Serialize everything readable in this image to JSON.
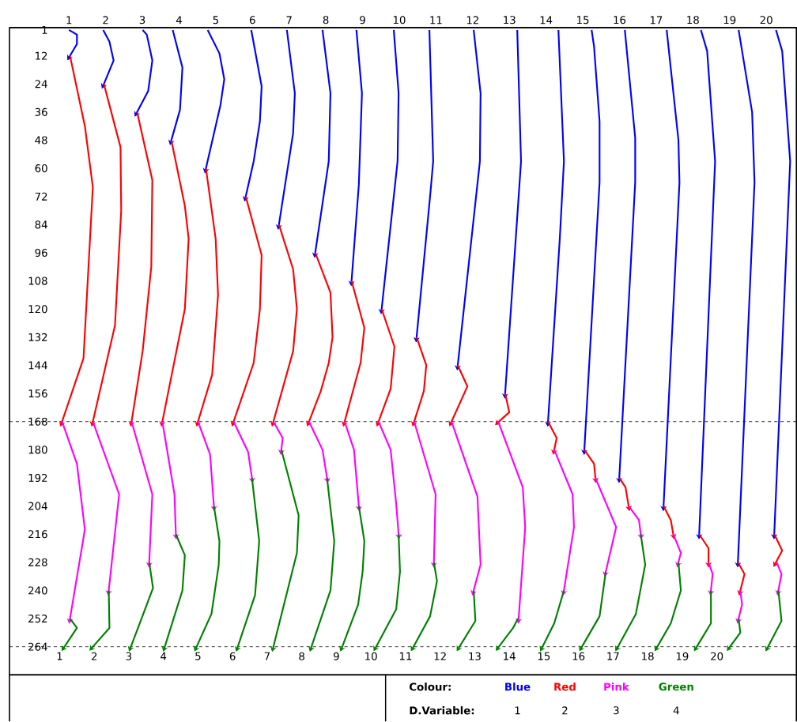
{
  "chart_data": {
    "type": "line",
    "xlim": [
      -0.45,
      22.3
    ],
    "xticks": [
      1,
      2,
      3,
      4,
      5,
      6,
      7,
      8,
      9,
      10,
      11,
      12,
      13,
      14,
      15,
      16,
      17,
      18,
      19,
      20
    ],
    "x2lim": [
      -0.62,
      20.82
    ],
    "x2ticks": [
      1,
      2,
      3,
      4,
      5,
      6,
      7,
      8,
      9,
      10,
      11,
      12,
      13,
      14,
      15,
      16,
      17,
      18,
      19,
      20
    ],
    "ylim": [
      276,
      0
    ],
    "yticks": [
      1,
      12,
      24,
      36,
      48,
      60,
      72,
      84,
      96,
      108,
      120,
      132,
      144,
      156,
      168,
      180,
      192,
      204,
      216,
      228,
      240,
      252,
      264
    ],
    "ref_lines": [
      {
        "axis": "y",
        "value": 168,
        "color": "#000000",
        "line_style": "dashed"
      },
      {
        "axis": "y",
        "value": 264,
        "color": "#000000",
        "line_style": "dashed"
      }
    ],
    "legend": "bottom right",
    "annotations": [
      "Colour:",
      "D.Variable:",
      "1",
      "2",
      "3",
      "4"
    ],
    "series": [
      {
        "name": "Blue",
        "color": "#0000ff",
        "x": [
          1.27,
          1.5,
          1.5,
          1.3
        ],
        "values": [
          1,
          3,
          7,
          12
        ]
      },
      {
        "color": "#0000ff",
        "x": [
          2.26,
          2.44,
          2.56,
          2.28
        ],
        "values": [
          1,
          6,
          14,
          24
        ]
      },
      {
        "color": "#0000ff",
        "x": [
          3.4,
          3.52,
          3.68,
          3.56,
          3.24
        ],
        "values": [
          1,
          3,
          14,
          27,
          36
        ]
      },
      {
        "color": "#0000ff",
        "x": [
          4.27,
          4.55,
          4.48,
          4.23
        ],
        "values": [
          1,
          17,
          35,
          48
        ]
      },
      {
        "color": "#0000ff",
        "x": [
          5.28,
          5.62,
          5.76,
          5.65,
          5.23
        ],
        "values": [
          1,
          11,
          22,
          33,
          60
        ]
      },
      {
        "color": "#0000ff",
        "x": [
          6.54,
          6.84,
          6.79,
          6.61,
          6.38
        ],
        "values": [
          1,
          25,
          40,
          57,
          72
        ]
      },
      {
        "color": "#0000ff",
        "x": [
          7.57,
          7.8,
          7.75,
          7.34
        ],
        "values": [
          1,
          28,
          45,
          84
        ]
      },
      {
        "color": "#0000ff",
        "x": [
          8.6,
          8.83,
          8.78,
          8.39
        ],
        "values": [
          1,
          28,
          57,
          96
        ]
      },
      {
        "color": "#0000ff",
        "x": [
          9.58,
          9.74,
          9.65,
          9.44
        ],
        "values": [
          1,
          28,
          67,
          108
        ]
      },
      {
        "color": "#0000ff",
        "x": [
          10.66,
          10.8,
          10.77,
          10.31
        ],
        "values": [
          1,
          28,
          57,
          120
        ]
      },
      {
        "color": "#0000ff",
        "x": [
          11.69,
          11.8,
          11.71,
          11.32
        ],
        "values": [
          1,
          57,
          72,
          132
        ]
      },
      {
        "color": "#0000ff",
        "x": [
          12.97,
          13.17,
          13.15,
          12.51
        ],
        "values": [
          1,
          28,
          57,
          144
        ]
      },
      {
        "color": "#0000ff",
        "x": [
          14.23,
          14.34,
          13.88
        ],
        "values": [
          1,
          57,
          156
        ]
      },
      {
        "color": "#0000ff",
        "x": [
          15.42,
          15.58,
          15.46,
          15.12
        ],
        "values": [
          1,
          57,
          90,
          168
        ]
      },
      {
        "color": "#0000ff",
        "x": [
          16.38,
          16.45,
          16.61,
          16.61,
          16.17
        ],
        "values": [
          1,
          8,
          40,
          66,
          180
        ]
      },
      {
        "color": "#0000ff",
        "x": [
          17.34,
          17.64,
          17.64,
          17.18
        ],
        "values": [
          1,
          47,
          66,
          192
        ]
      },
      {
        "color": "#0000ff",
        "x": [
          18.55,
          18.89,
          18.92,
          18.46
        ],
        "values": [
          1,
          48,
          66,
          204
        ]
      },
      {
        "color": "#0000ff",
        "x": [
          19.54,
          19.72,
          19.95,
          19.49
        ],
        "values": [
          1,
          10,
          57,
          216
        ]
      },
      {
        "color": "#0000ff",
        "x": [
          20.63,
          21.02,
          21.09,
          20.61
        ],
        "values": [
          1,
          36,
          66,
          228
        ]
      },
      {
        "color": "#0000ff",
        "x": [
          21.71,
          21.89,
          22.12,
          21.66
        ],
        "values": [
          1,
          10,
          57,
          216
        ]
      },
      {
        "name": "Red",
        "color": "#ff0000",
        "x": [
          1.3,
          1.73,
          1.96,
          1.69,
          1.07
        ],
        "values": [
          12,
          42,
          68,
          141,
          168
        ]
      },
      {
        "color": "#ff0000",
        "x": [
          2.28,
          2.76,
          2.78,
          2.6,
          1.96
        ],
        "values": [
          24,
          51,
          78,
          127,
          168
        ]
      },
      {
        "color": "#ff0000",
        "x": [
          3.24,
          3.68,
          3.65,
          3.4,
          3.08
        ],
        "values": [
          36,
          65,
          102,
          138,
          168
        ]
      },
      {
        "color": "#ff0000",
        "x": [
          4.23,
          4.62,
          4.73,
          4.62,
          3.97
        ],
        "values": [
          48,
          76,
          90,
          120,
          168
        ]
      },
      {
        "color": "#ff0000",
        "x": [
          5.23,
          5.51,
          5.58,
          5.41,
          5.0
        ],
        "values": [
          60,
          90,
          114,
          148,
          168
        ]
      },
      {
        "color": "#ff0000",
        "x": [
          6.38,
          6.84,
          6.79,
          6.61,
          6.03
        ],
        "values": [
          72,
          97,
          120,
          143,
          168
        ]
      },
      {
        "color": "#ff0000",
        "x": [
          7.34,
          7.75,
          7.86,
          7.75,
          7.18
        ],
        "values": [
          84,
          103,
          120,
          138,
          168
        ]
      },
      {
        "color": "#ff0000",
        "x": [
          8.39,
          8.83,
          8.89,
          8.78,
          8.55,
          8.21
        ],
        "values": [
          96,
          113,
          132,
          143,
          155,
          168
        ]
      },
      {
        "color": "#ff0000",
        "x": [
          9.44,
          9.81,
          9.7,
          9.24
        ],
        "values": [
          108,
          128,
          143,
          168
        ]
      },
      {
        "color": "#ff0000",
        "x": [
          10.31,
          10.68,
          10.57,
          10.22
        ],
        "values": [
          120,
          136,
          154,
          168
        ]
      },
      {
        "color": "#ff0000",
        "x": [
          11.32,
          11.6,
          11.53,
          11.25
        ],
        "values": [
          132,
          144,
          155,
          168
        ]
      },
      {
        "color": "#ff0000",
        "x": [
          12.51,
          12.79,
          12.33
        ],
        "values": [
          144,
          153,
          168
        ]
      },
      {
        "color": "#ff0000",
        "x": [
          13.88,
          14.0,
          13.7
        ],
        "values": [
          156,
          164,
          168
        ]
      },
      {
        "color": "#ff0000",
        "x": [
          15.12,
          15.37,
          15.3
        ],
        "values": [
          168,
          175,
          180
        ]
      },
      {
        "color": "#ff0000",
        "x": [
          16.17,
          16.45,
          16.49
        ],
        "values": [
          180,
          186,
          192
        ]
      },
      {
        "color": "#ff0000",
        "x": [
          17.18,
          17.36,
          17.45
        ],
        "values": [
          192,
          196,
          204
        ]
      },
      {
        "color": "#ff0000",
        "x": [
          18.46,
          18.67,
          18.74
        ],
        "values": [
          204,
          210,
          216
        ]
      },
      {
        "color": "#ff0000",
        "x": [
          19.49,
          19.76,
          19.76
        ],
        "values": [
          216,
          222,
          228
        ]
      },
      {
        "color": "#ff0000",
        "x": [
          20.61,
          20.8,
          20.68
        ],
        "values": [
          228,
          233,
          240
        ]
      },
      {
        "color": "#ff0000",
        "x": [
          21.66,
          21.89,
          21.71
        ],
        "values": [
          216,
          223,
          228
        ]
      },
      {
        "name": "Pink",
        "color": "#ff00ff",
        "x": [
          1.07,
          1.5,
          1.73,
          1.3
        ],
        "values": [
          168,
          186,
          214,
          252
        ]
      },
      {
        "color": "#ff00ff",
        "x": [
          1.96,
          2.72,
          2.42
        ],
        "values": [
          168,
          199,
          240
        ]
      },
      {
        "color": "#ff00ff",
        "x": [
          3.08,
          3.68,
          3.59
        ],
        "values": [
          168,
          199,
          228
        ]
      },
      {
        "color": "#ff00ff",
        "x": [
          3.97,
          4.32,
          4.36
        ],
        "values": [
          168,
          199,
          216
        ]
      },
      {
        "color": "#ff00ff",
        "x": [
          5.0,
          5.35,
          5.46
        ],
        "values": [
          168,
          182,
          204
        ]
      },
      {
        "color": "#ff00ff",
        "x": [
          6.03,
          6.45,
          6.56
        ],
        "values": [
          168,
          181,
          192
        ]
      },
      {
        "color": "#ff00ff",
        "x": [
          7.18,
          7.45,
          7.41
        ],
        "values": [
          168,
          175,
          180
        ]
      },
      {
        "color": "#ff00ff",
        "x": [
          8.21,
          8.6,
          8.73
        ],
        "values": [
          168,
          180,
          192
        ]
      },
      {
        "color": "#ff00ff",
        "x": [
          9.24,
          9.51,
          9.65
        ],
        "values": [
          168,
          180,
          204
        ]
      },
      {
        "color": "#ff00ff",
        "x": [
          10.22,
          10.57,
          10.73,
          10.8
        ],
        "values": [
          168,
          180,
          203,
          216
        ]
      },
      {
        "color": "#ff00ff",
        "x": [
          11.25,
          11.87,
          11.82
        ],
        "values": [
          168,
          199,
          228
        ]
      },
      {
        "color": "#ff00ff",
        "x": [
          12.33,
          13.08,
          13.17,
          12.97
        ],
        "values": [
          168,
          200,
          229,
          240
        ]
      },
      {
        "color": "#ff00ff",
        "x": [
          13.68,
          14.39,
          14.46,
          14.27
        ],
        "values": [
          168,
          196,
          213,
          252
        ]
      },
      {
        "color": "#ff00ff",
        "x": [
          15.3,
          15.83,
          15.87,
          15.58
        ],
        "values": [
          180,
          199,
          213,
          240
        ]
      },
      {
        "color": "#ff00ff",
        "x": [
          16.49,
          17.09,
          16.79
        ],
        "values": [
          192,
          213,
          232
        ]
      },
      {
        "color": "#ff00ff",
        "x": [
          17.45,
          17.75,
          17.8
        ],
        "values": [
          204,
          210,
          216
        ]
      },
      {
        "color": "#ff00ff",
        "x": [
          18.74,
          18.96,
          18.89
        ],
        "values": [
          216,
          224,
          228
        ]
      },
      {
        "color": "#ff00ff",
        "x": [
          19.76,
          19.88,
          19.83
        ],
        "values": [
          228,
          233,
          240
        ]
      },
      {
        "color": "#ff00ff",
        "x": [
          20.68,
          20.73,
          20.63
        ],
        "values": [
          240,
          246,
          252
        ]
      },
      {
        "color": "#ff00ff",
        "x": [
          21.73,
          21.87,
          21.78
        ],
        "values": [
          228,
          233,
          240
        ]
      },
      {
        "name": "Green",
        "color": "#008000",
        "x": [
          1.3,
          1.5,
          1.14
        ],
        "values": [
          252,
          256,
          264
        ]
      },
      {
        "color": "#008000",
        "x": [
          2.42,
          2.44,
          1.96
        ],
        "values": [
          240,
          256,
          264
        ]
      },
      {
        "color": "#008000",
        "x": [
          3.59,
          3.7,
          3.06
        ],
        "values": [
          228,
          239,
          264
        ]
      },
      {
        "color": "#008000",
        "x": [
          4.36,
          4.62,
          4.55,
          4.04
        ],
        "values": [
          216,
          225,
          240,
          264
        ]
      },
      {
        "color": "#008000",
        "x": [
          5.46,
          5.62,
          5.6,
          5.39,
          4.96
        ],
        "values": [
          204,
          219,
          229,
          250,
          264
        ]
      },
      {
        "color": "#008000",
        "x": [
          6.56,
          6.77,
          6.65,
          6.15
        ],
        "values": [
          192,
          219,
          242,
          264
        ]
      },
      {
        "color": "#008000",
        "x": [
          7.41,
          7.91,
          7.86,
          7.18
        ],
        "values": [
          180,
          208,
          224,
          264
        ]
      },
      {
        "color": "#008000",
        "x": [
          8.73,
          8.94,
          8.83,
          8.28
        ],
        "values": [
          192,
          219,
          240,
          264
        ]
      },
      {
        "color": "#008000",
        "x": [
          9.65,
          9.81,
          9.76,
          9.63,
          9.17
        ],
        "values": [
          204,
          219,
          232,
          246,
          264
        ]
      },
      {
        "color": "#008000",
        "x": [
          10.8,
          10.84,
          10.73,
          10.15
        ],
        "values": [
          216,
          232,
          248,
          264
        ]
      },
      {
        "color": "#008000",
        "x": [
          11.82,
          11.91,
          11.71,
          11.23
        ],
        "values": [
          228,
          236,
          251,
          264
        ]
      },
      {
        "color": "#008000",
        "x": [
          12.97,
          13.02,
          12.56
        ],
        "values": [
          240,
          253,
          264
        ]
      },
      {
        "color": "#008000",
        "x": [
          14.25,
          14.11,
          13.7
        ],
        "values": [
          252,
          256,
          264
        ]
      },
      {
        "color": "#008000",
        "x": [
          15.58,
          15.3,
          14.96
        ],
        "values": [
          240,
          254,
          264
        ]
      },
      {
        "color": "#008000",
        "x": [
          16.79,
          16.61,
          16.1
        ],
        "values": [
          232,
          251,
          264
        ]
      },
      {
        "color": "#008000",
        "x": [
          17.8,
          17.93,
          17.66,
          17.14
        ],
        "values": [
          216,
          229,
          250,
          264
        ]
      },
      {
        "color": "#008000",
        "x": [
          18.89,
          18.96,
          18.67,
          18.28
        ],
        "values": [
          228,
          240,
          254,
          264
        ]
      },
      {
        "color": "#008000",
        "x": [
          19.83,
          19.83,
          19.42
        ],
        "values": [
          240,
          254,
          264
        ]
      },
      {
        "color": "#008000",
        "x": [
          20.63,
          20.68,
          20.38
        ],
        "values": [
          252,
          258,
          264
        ]
      },
      {
        "color": "#008000",
        "x": [
          21.78,
          21.87,
          21.48
        ],
        "values": [
          240,
          253,
          264
        ]
      }
    ]
  }
}
